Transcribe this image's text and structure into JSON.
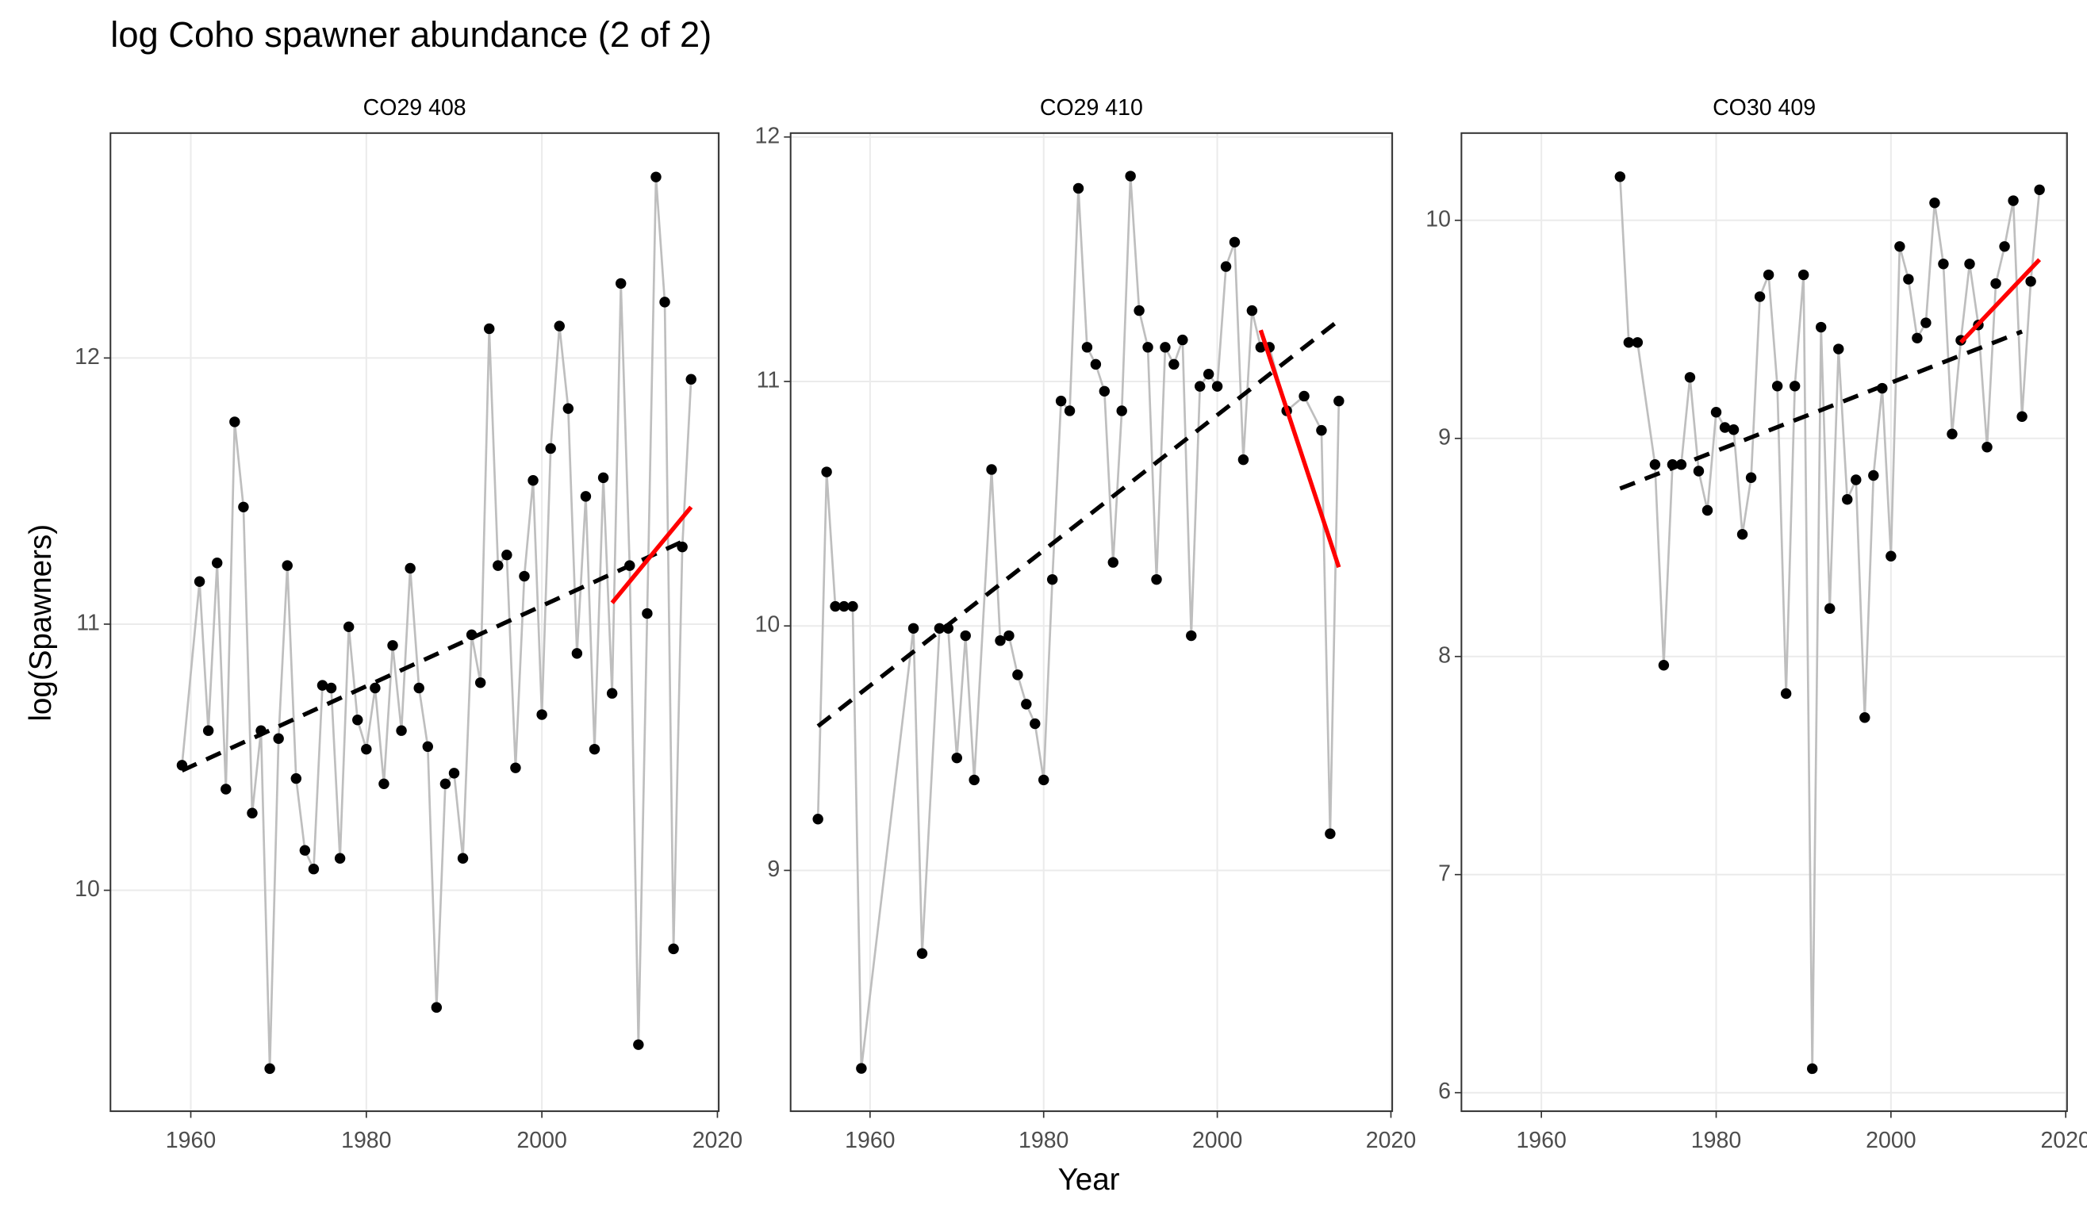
{
  "title": "log Coho spawner abundance (2 of 2)",
  "xlabel": "Year",
  "ylabel": "log(Spawners)",
  "chart_data": [
    {
      "type": "line",
      "subtitle": "CO29 408",
      "point_color": "#000000",
      "line_color": "#bebebe",
      "grid": true,
      "x": [
        1959,
        1961,
        1962,
        1963,
        1964,
        1965,
        1966,
        1967,
        1968,
        1969,
        1970,
        1971,
        1972,
        1973,
        1974,
        1975,
        1976,
        1977,
        1978,
        1979,
        1980,
        1981,
        1982,
        1983,
        1984,
        1985,
        1986,
        1987,
        1988,
        1989,
        1990,
        1991,
        1992,
        1993,
        1994,
        1995,
        1996,
        1997,
        1998,
        1999,
        2000,
        2001,
        2002,
        2003,
        2004,
        2005,
        2006,
        2007,
        2008,
        2009,
        2010,
        2011,
        2012,
        2013,
        2014,
        2015,
        2016,
        2017
      ],
      "values": [
        10.47,
        11.16,
        10.6,
        11.23,
        10.38,
        11.76,
        11.44,
        10.29,
        10.6,
        9.33,
        10.57,
        11.22,
        10.42,
        10.15,
        10.08,
        10.77,
        10.76,
        10.12,
        10.99,
        10.64,
        10.53,
        10.76,
        10.4,
        10.92,
        10.6,
        11.21,
        10.76,
        10.54,
        9.56,
        10.4,
        10.44,
        10.12,
        10.96,
        10.78,
        12.11,
        11.22,
        11.26,
        10.46,
        11.18,
        11.54,
        10.66,
        11.66,
        12.12,
        11.81,
        10.89,
        11.48,
        10.53,
        11.55,
        10.74,
        12.28,
        11.22,
        9.42,
        11.04,
        12.68,
        12.21,
        9.78,
        11.29,
        11.92
      ],
      "trend": {
        "color": "#000000",
        "x": [
          1959,
          2016
        ],
        "values": [
          10.45,
          11.31
        ]
      },
      "recent_trend": {
        "color": "#ff0000",
        "x": [
          2008,
          2017
        ],
        "values": [
          11.08,
          11.44
        ]
      },
      "xlim": [
        1950.85,
        2020.15
      ],
      "xticks": [
        1960,
        1980,
        2000,
        2020
      ],
      "ylim": [
        9.17,
        12.845
      ],
      "yticks": [
        10,
        11,
        12
      ]
    },
    {
      "type": "line",
      "subtitle": "CO29 410",
      "point_color": "#000000",
      "line_color": "#bebebe",
      "grid": true,
      "x": [
        1954,
        1955,
        1956,
        1957,
        1958,
        1959,
        1965,
        1966,
        1968,
        1969,
        1970,
        1971,
        1972,
        1974,
        1975,
        1976,
        1977,
        1978,
        1979,
        1980,
        1981,
        1982,
        1983,
        1984,
        1985,
        1986,
        1987,
        1988,
        1989,
        1990,
        1991,
        1992,
        1993,
        1994,
        1995,
        1996,
        1997,
        1998,
        1999,
        2000,
        2001,
        2002,
        2003,
        2004,
        2005,
        2006,
        2008,
        2010,
        2012,
        2013,
        2014
      ],
      "values": [
        9.21,
        10.63,
        10.08,
        10.08,
        10.08,
        8.19,
        9.99,
        8.66,
        9.99,
        9.99,
        9.46,
        9.96,
        9.37,
        10.64,
        9.94,
        9.96,
        9.8,
        9.68,
        9.6,
        9.37,
        10.19,
        10.92,
        10.88,
        11.79,
        11.14,
        11.07,
        10.96,
        10.26,
        10.88,
        11.84,
        11.29,
        11.14,
        10.19,
        11.14,
        11.07,
        11.17,
        9.96,
        10.98,
        11.03,
        10.98,
        11.47,
        11.57,
        10.68,
        11.29,
        11.14,
        11.14,
        10.88,
        10.94,
        10.8,
        9.15,
        10.92
      ],
      "trend": {
        "color": "#000000",
        "x": [
          1954,
          2014
        ],
        "values": [
          9.59,
          11.25
        ]
      },
      "recent_trend": {
        "color": "#ff0000",
        "x": [
          2005,
          2014
        ],
        "values": [
          11.21,
          10.24
        ]
      },
      "xlim": [
        1950.85,
        2020.15
      ],
      "xticks": [
        1960,
        1980,
        2000,
        2020
      ],
      "ylim": [
        8.015,
        12.016
      ],
      "yticks": [
        9,
        10,
        11,
        12
      ]
    },
    {
      "type": "line",
      "subtitle": "CO30 409",
      "point_color": "#000000",
      "line_color": "#bebebe",
      "grid": true,
      "x": [
        1969,
        1970,
        1971,
        1973,
        1974,
        1975,
        1976,
        1977,
        1978,
        1979,
        1980,
        1981,
        1982,
        1983,
        1984,
        1985,
        1986,
        1987,
        1988,
        1989,
        1990,
        1991,
        1992,
        1993,
        1994,
        1995,
        1996,
        1997,
        1998,
        1999,
        2000,
        2001,
        2002,
        2003,
        2004,
        2005,
        2006,
        2007,
        2008,
        2009,
        2010,
        2011,
        2012,
        2013,
        2014,
        2015,
        2016,
        2017
      ],
      "values": [
        10.2,
        9.44,
        9.44,
        8.88,
        7.96,
        8.88,
        8.88,
        9.28,
        8.85,
        8.67,
        9.12,
        9.05,
        9.04,
        8.56,
        8.82,
        9.65,
        9.75,
        9.24,
        7.83,
        9.24,
        9.75,
        6.11,
        9.51,
        8.22,
        9.41,
        8.72,
        8.81,
        7.72,
        8.83,
        9.23,
        8.46,
        9.88,
        9.73,
        9.46,
        9.53,
        10.08,
        9.8,
        9.02,
        9.45,
        9.8,
        9.52,
        8.96,
        9.71,
        9.88,
        10.09,
        9.1,
        9.72,
        10.14
      ],
      "trend": {
        "color": "#000000",
        "x": [
          1969,
          2015
        ],
        "values": [
          8.77,
          9.49
        ]
      },
      "recent_trend": {
        "color": "#ff0000",
        "x": [
          2008,
          2017
        ],
        "values": [
          9.44,
          9.82
        ]
      },
      "xlim": [
        1950.85,
        2020.15
      ],
      "xticks": [
        1960,
        1980,
        2000,
        2020
      ],
      "ylim": [
        5.915,
        10.4
      ],
      "yticks": [
        6,
        7,
        8,
        9,
        10
      ]
    }
  ]
}
